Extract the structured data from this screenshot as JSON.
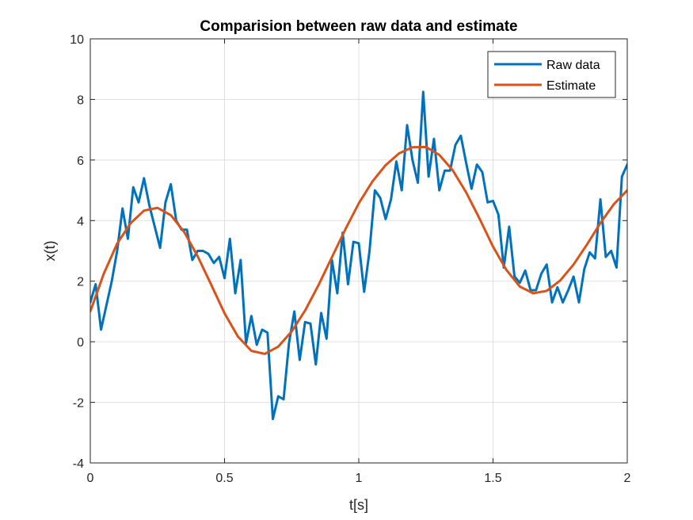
{
  "chart_data": {
    "type": "line",
    "title": "Comparision between raw data and estimate",
    "xlabel": "t[s]",
    "ylabel": "x(t)",
    "xlim": [
      0,
      2
    ],
    "ylim": [
      -4,
      10
    ],
    "grid": true,
    "legend_position": "top-right",
    "x_ticks": [
      0,
      0.5,
      1,
      1.5,
      2
    ],
    "x_tick_labels": [
      "0",
      "0.5",
      "1",
      "1.5",
      "2"
    ],
    "y_ticks": [
      -4,
      -2,
      0,
      2,
      4,
      6,
      8,
      10
    ],
    "y_tick_labels": [
      "-4",
      "-2",
      "0",
      "2",
      "4",
      "6",
      "8",
      "10"
    ],
    "series": [
      {
        "name": "Raw data",
        "color": "#0072BD",
        "x": [
          0.0,
          0.02,
          0.04,
          0.06,
          0.08,
          0.1,
          0.12,
          0.14,
          0.16,
          0.18,
          0.2,
          0.22,
          0.24,
          0.26,
          0.28,
          0.3,
          0.32,
          0.34,
          0.36,
          0.38,
          0.4,
          0.42,
          0.44,
          0.46,
          0.48,
          0.5,
          0.52,
          0.54,
          0.56,
          0.58,
          0.6,
          0.62,
          0.64,
          0.66,
          0.68,
          0.7,
          0.72,
          0.74,
          0.76,
          0.78,
          0.8,
          0.82,
          0.84,
          0.86,
          0.88,
          0.9,
          0.92,
          0.94,
          0.96,
          0.98,
          1.0,
          1.02,
          1.04,
          1.06,
          1.08,
          1.1,
          1.12,
          1.14,
          1.16,
          1.18,
          1.2,
          1.22,
          1.24,
          1.26,
          1.28,
          1.3,
          1.32,
          1.34,
          1.36,
          1.38,
          1.4,
          1.42,
          1.44,
          1.46,
          1.48,
          1.5,
          1.52,
          1.54,
          1.56,
          1.58,
          1.6,
          1.62,
          1.64,
          1.66,
          1.68,
          1.7,
          1.72,
          1.74,
          1.76,
          1.78,
          1.8,
          1.82,
          1.84,
          1.86,
          1.88,
          1.9,
          1.92,
          1.94,
          1.96,
          1.98,
          2.0
        ],
        "y": [
          1.3,
          1.9,
          0.4,
          1.2,
          2.0,
          3.0,
          4.4,
          3.4,
          5.1,
          4.6,
          5.4,
          4.5,
          3.8,
          3.1,
          4.6,
          5.2,
          4.0,
          3.7,
          3.7,
          2.7,
          3.0,
          3.0,
          2.9,
          2.6,
          2.8,
          2.1,
          3.4,
          1.6,
          2.7,
          -0.05,
          0.85,
          -0.1,
          0.4,
          0.3,
          -2.55,
          -1.8,
          -1.9,
          -0.05,
          1.0,
          -0.6,
          0.65,
          0.6,
          -0.75,
          0.95,
          0.1,
          2.7,
          1.6,
          3.6,
          1.9,
          3.3,
          3.25,
          1.65,
          3.0,
          5.0,
          4.75,
          4.05,
          4.7,
          5.95,
          5.0,
          7.15,
          6.0,
          5.25,
          8.25,
          5.45,
          6.7,
          5.0,
          5.65,
          5.65,
          6.5,
          6.8,
          5.9,
          5.05,
          5.85,
          5.6,
          4.6,
          4.65,
          4.2,
          2.45,
          3.8,
          2.15,
          1.95,
          2.35,
          1.7,
          1.7,
          2.25,
          2.55,
          1.3,
          1.8,
          1.3,
          1.7,
          2.15,
          1.3,
          2.4,
          2.95,
          2.75,
          4.7,
          2.8,
          3.0,
          2.45,
          5.45,
          5.85
        ]
      },
      {
        "name": "Estimate",
        "color": "#D95319",
        "x": [
          0.0,
          0.05,
          0.1,
          0.15,
          0.2,
          0.25,
          0.3,
          0.35,
          0.4,
          0.45,
          0.5,
          0.55,
          0.6,
          0.65,
          0.7,
          0.75,
          0.8,
          0.85,
          0.9,
          0.95,
          1.0,
          1.05,
          1.1,
          1.15,
          1.2,
          1.25,
          1.3,
          1.35,
          1.4,
          1.45,
          1.5,
          1.55,
          1.6,
          1.65,
          1.7,
          1.75,
          1.8,
          1.85,
          1.9,
          1.95,
          2.0
        ],
        "y": [
          1.0,
          2.24,
          3.24,
          3.91,
          4.33,
          4.42,
          4.18,
          3.62,
          2.82,
          1.89,
          0.94,
          0.17,
          -0.3,
          -0.4,
          -0.16,
          0.34,
          1.03,
          1.87,
          2.79,
          3.71,
          4.57,
          5.28,
          5.83,
          6.22,
          6.42,
          6.43,
          6.17,
          5.66,
          4.93,
          4.06,
          3.14,
          2.37,
          1.82,
          1.6,
          1.68,
          2.02,
          2.55,
          3.21,
          3.92,
          4.54,
          5.0
        ]
      }
    ]
  }
}
